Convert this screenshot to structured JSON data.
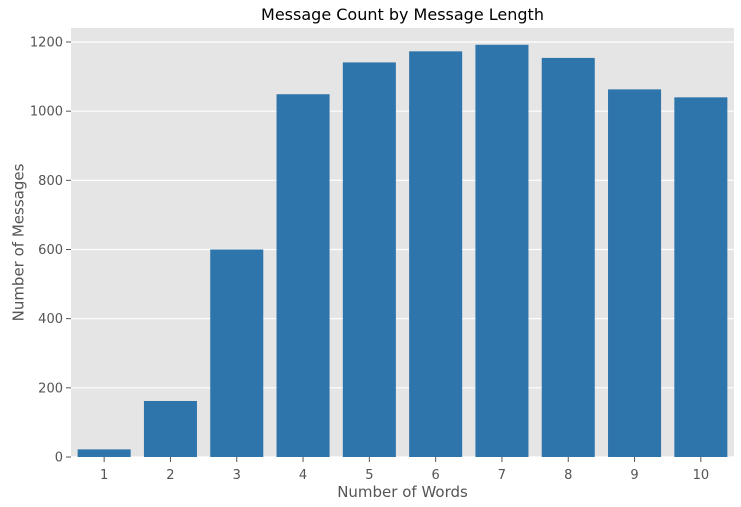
{
  "chart_data": {
    "type": "bar",
    "title": "Message Count by Message Length",
    "xlabel": "Number of Words",
    "ylabel": "Number of Messages",
    "categories": [
      "1",
      "2",
      "3",
      "4",
      "5",
      "6",
      "7",
      "8",
      "9",
      "10"
    ],
    "values": [
      22,
      162,
      600,
      1049,
      1141,
      1173,
      1192,
      1154,
      1063,
      1040
    ],
    "ylim": [
      0,
      1200
    ],
    "yticks": [
      0,
      200,
      400,
      600,
      800,
      1000,
      1200
    ],
    "grid": true,
    "legend": "none",
    "colors": {
      "bar": "#2e75ab",
      "plot_background": "#e5e5e5",
      "grid": "#ffffff"
    }
  }
}
